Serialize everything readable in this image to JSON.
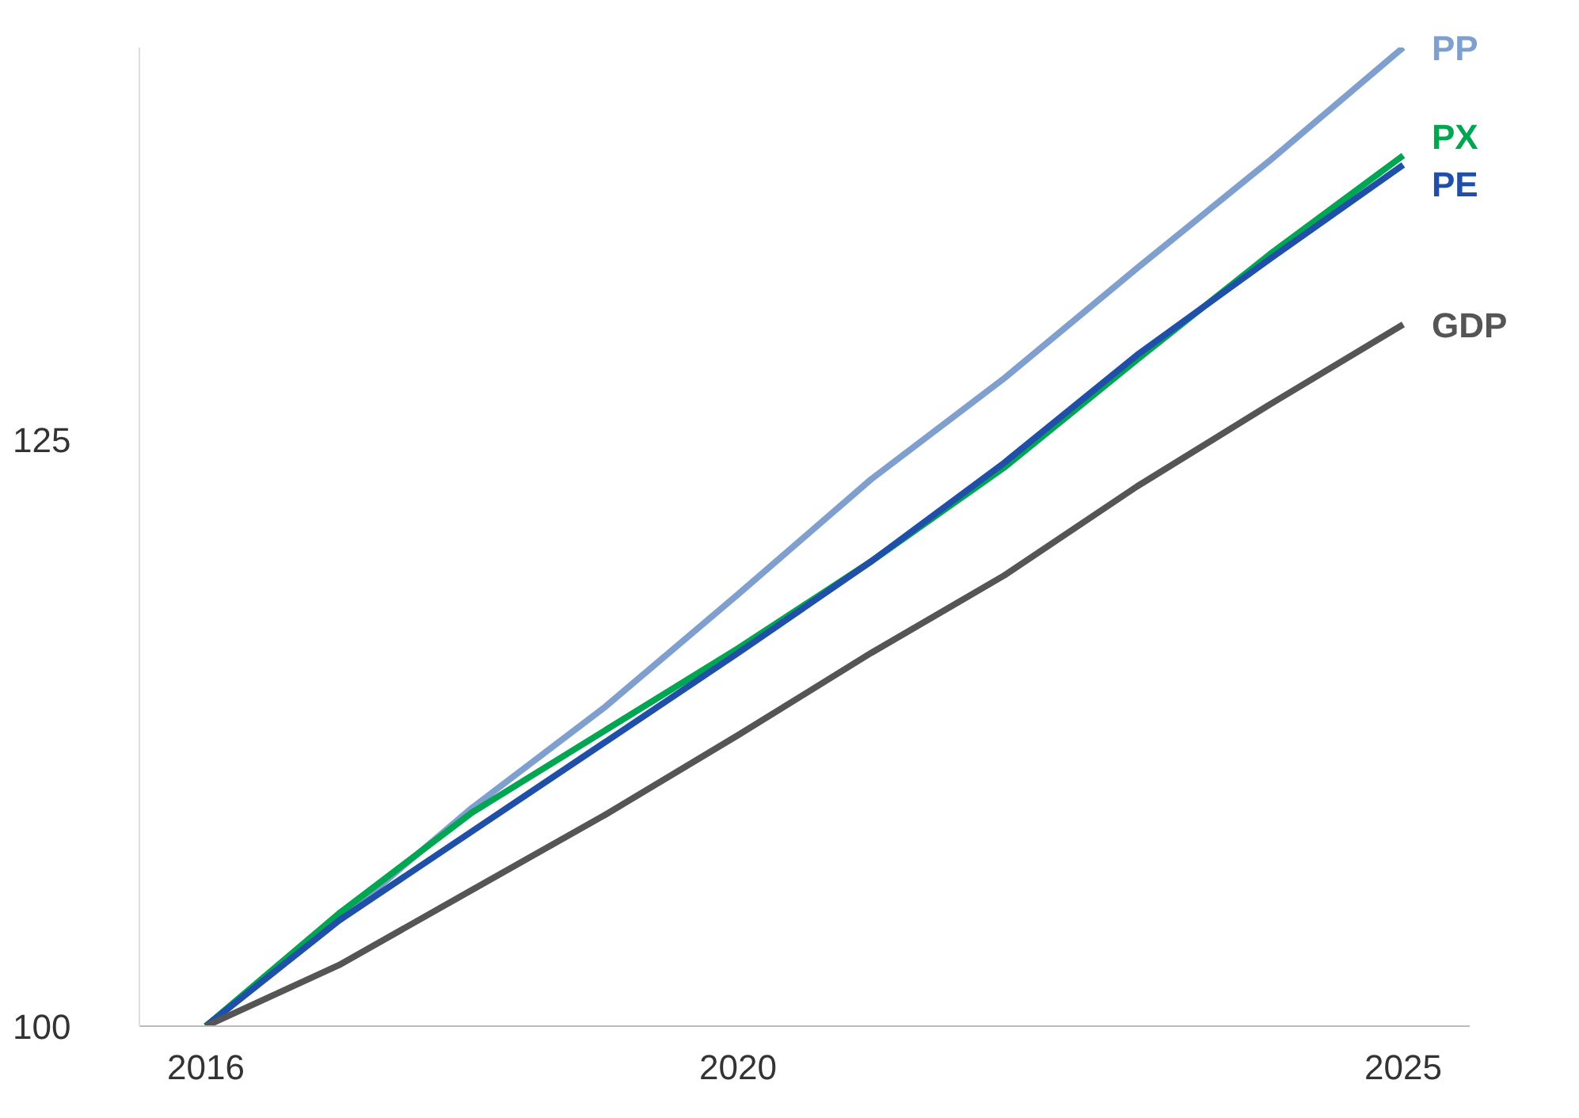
{
  "chart_data": {
    "type": "line",
    "x": [
      2016,
      2017,
      2018,
      2019,
      2020,
      2021,
      2022,
      2023,
      2024,
      2025
    ],
    "series": [
      {
        "name": "PP",
        "color": "#7f9fcf",
        "values": [
          100,
          104.5,
          109.3,
          113.6,
          118.4,
          123.3,
          127.6,
          132.3,
          136.9,
          141.7
        ]
      },
      {
        "name": "PX",
        "color": "#00a651",
        "values": [
          100,
          104.8,
          109.1,
          112.6,
          116.1,
          119.8,
          123.8,
          128.4,
          132.9,
          137.1
        ]
      },
      {
        "name": "PE",
        "color": "#1f4fa8",
        "values": [
          100,
          104.5,
          108.3,
          112.1,
          115.9,
          119.8,
          124.0,
          128.6,
          132.7,
          136.7
        ]
      },
      {
        "name": "GDP",
        "color": "#555555",
        "values": [
          100,
          102.6,
          105.8,
          109.0,
          112.4,
          115.9,
          119.2,
          123.0,
          126.5,
          129.9
        ]
      }
    ],
    "xlim": [
      2015.5,
      2025.5
    ],
    "xticks": [
      2016,
      2020,
      2025
    ],
    "ylim": [
      100,
      141.7
    ],
    "yticks": [
      100,
      125
    ],
    "grid": false,
    "legend": false,
    "marker": "none",
    "line_style": "solid"
  }
}
